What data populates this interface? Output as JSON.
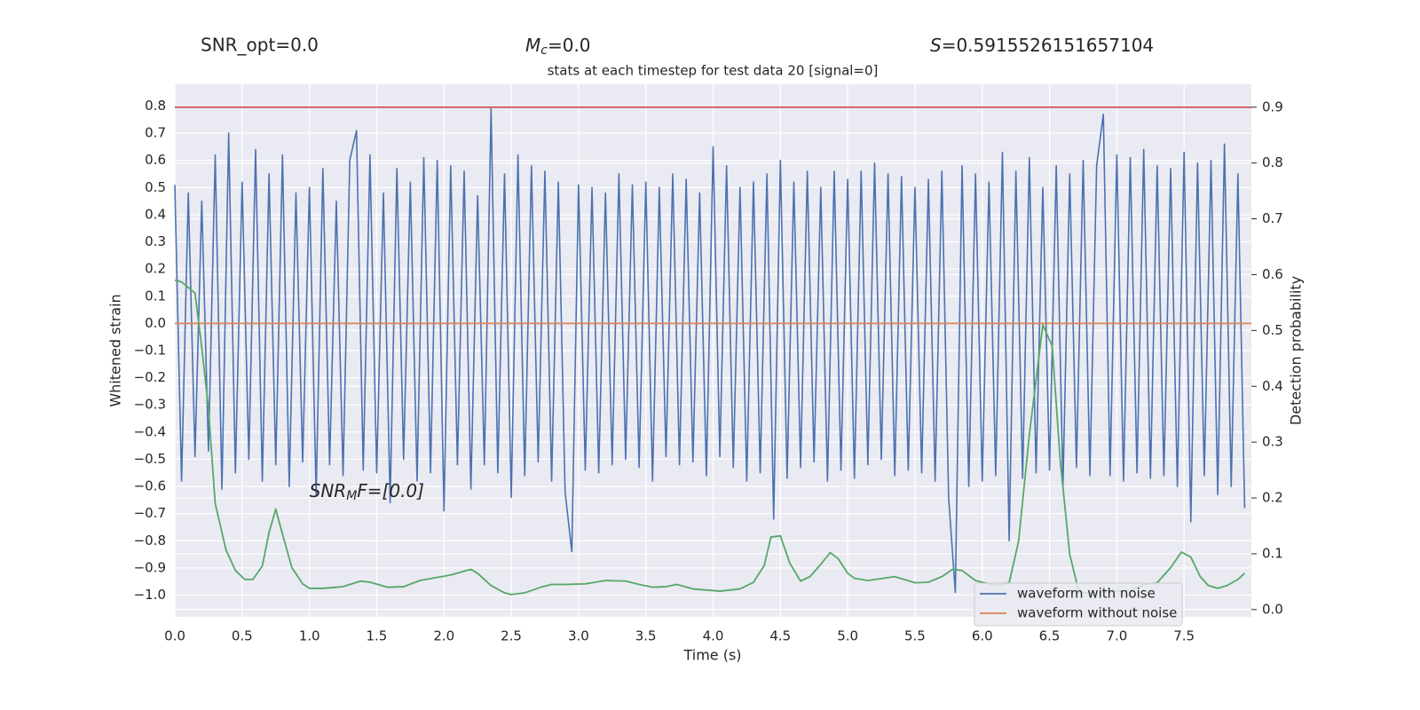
{
  "chart_data": {
    "type": "line",
    "title": "stats at each timestep for test data 20 [signal=0]",
    "annotations": [
      {
        "text": "SNR_opt=0.0"
      },
      {
        "symbol": "M",
        "sub": "c",
        "rest": "=0.0"
      },
      {
        "symbol": "S",
        "rest": "=0.5915526151657104"
      },
      {
        "symbol": "SNR",
        "sub": "M",
        "rest": "F=[0.0]",
        "x": 1.0,
        "y": -0.62
      }
    ],
    "x_label": "Time (s)",
    "y_label": "Whitened strain",
    "y2_label": "Detection probability",
    "xlim": [
      0,
      8
    ],
    "ylim": [
      -1.08,
      0.88
    ],
    "y2lim": [
      -0.013,
      0.941
    ],
    "xticks": [
      {
        "value": 0,
        "label": "0.0"
      },
      {
        "value": 0.5,
        "label": "0.5"
      },
      {
        "value": 1,
        "label": "1.0"
      },
      {
        "value": 1.5,
        "label": "1.5"
      },
      {
        "value": 2,
        "label": "2.0"
      },
      {
        "value": 2.5,
        "label": "2.5"
      },
      {
        "value": 3,
        "label": "3.0"
      },
      {
        "value": 3.5,
        "label": "3.5"
      },
      {
        "value": 4,
        "label": "4.0"
      },
      {
        "value": 4.5,
        "label": "4.5"
      },
      {
        "value": 5,
        "label": "5.0"
      },
      {
        "value": 5.5,
        "label": "5.5"
      },
      {
        "value": 6,
        "label": "6.0"
      },
      {
        "value": 6.5,
        "label": "6.5"
      },
      {
        "value": 7,
        "label": "7.0"
      },
      {
        "value": 7.5,
        "label": "7.5"
      }
    ],
    "yticks": [
      {
        "value": -1.0,
        "label": "−1.0"
      },
      {
        "value": -0.9,
        "label": "−0.9"
      },
      {
        "value": -0.8,
        "label": "−0.8"
      },
      {
        "value": -0.7,
        "label": "−0.7"
      },
      {
        "value": -0.6,
        "label": "−0.6"
      },
      {
        "value": -0.5,
        "label": "−0.5"
      },
      {
        "value": -0.4,
        "label": "−0.4"
      },
      {
        "value": -0.3,
        "label": "−0.3"
      },
      {
        "value": -0.2,
        "label": "−0.2"
      },
      {
        "value": -0.1,
        "label": "−0.1"
      },
      {
        "value": 0,
        "label": "0.0"
      },
      {
        "value": 0.1,
        "label": "0.1"
      },
      {
        "value": 0.2,
        "label": "0.2"
      },
      {
        "value": 0.3,
        "label": "0.3"
      },
      {
        "value": 0.4,
        "label": "0.4"
      },
      {
        "value": 0.5,
        "label": "0.5"
      },
      {
        "value": 0.6,
        "label": "0.6"
      },
      {
        "value": 0.7,
        "label": "0.7"
      },
      {
        "value": 0.8,
        "label": "0.8"
      }
    ],
    "y2ticks": [
      {
        "value": 0,
        "label": "0.0"
      },
      {
        "value": 0.1,
        "label": "0.1"
      },
      {
        "value": 0.2,
        "label": "0.2"
      },
      {
        "value": 0.3,
        "label": "0.3"
      },
      {
        "value": 0.4,
        "label": "0.4"
      },
      {
        "value": 0.5,
        "label": "0.5"
      },
      {
        "value": 0.6,
        "label": "0.6"
      },
      {
        "value": 0.7,
        "label": "0.7"
      },
      {
        "value": 0.8,
        "label": "0.8"
      },
      {
        "value": 0.9,
        "label": "0.9"
      }
    ],
    "grid": true,
    "legend": "lower right",
    "threshold": {
      "value": 0.9,
      "axis": "y2",
      "color": "#c44e52"
    },
    "series": [
      {
        "name": "waveform with noise",
        "color": "#4c72b0",
        "x": [
          0,
          0.05,
          0.1,
          0.15,
          0.2,
          0.25,
          0.3,
          0.35,
          0.4,
          0.45,
          0.5,
          0.55,
          0.6,
          0.65,
          0.7,
          0.75,
          0.8,
          0.85,
          0.9,
          0.95,
          1,
          1.05,
          1.1,
          1.15,
          1.2,
          1.25,
          1.3,
          1.35,
          1.4,
          1.45,
          1.5,
          1.55,
          1.6,
          1.65,
          1.7,
          1.75,
          1.8,
          1.85,
          1.9,
          1.95,
          2,
          2.05,
          2.1,
          2.15,
          2.2,
          2.25,
          2.3,
          2.35,
          2.4,
          2.45,
          2.5,
          2.55,
          2.6,
          2.65,
          2.7,
          2.75,
          2.8,
          2.85,
          2.9,
          2.95,
          3,
          3.05,
          3.1,
          3.15,
          3.2,
          3.25,
          3.3,
          3.35,
          3.4,
          3.45,
          3.5,
          3.55,
          3.6,
          3.65,
          3.7,
          3.75,
          3.8,
          3.85,
          3.9,
          3.95,
          4,
          4.05,
          4.1,
          4.15,
          4.2,
          4.25,
          4.3,
          4.35,
          4.4,
          4.45,
          4.5,
          4.55,
          4.6,
          4.65,
          4.7,
          4.75,
          4.8,
          4.85,
          4.9,
          4.95,
          5,
          5.05,
          5.1,
          5.15,
          5.2,
          5.25,
          5.3,
          5.35,
          5.4,
          5.45,
          5.5,
          5.55,
          5.6,
          5.65,
          5.7,
          5.75,
          5.8,
          5.85,
          5.9,
          5.95,
          6,
          6.05,
          6.1,
          6.15,
          6.2,
          6.25,
          6.3,
          6.35,
          6.4,
          6.45,
          6.5,
          6.55,
          6.6,
          6.65,
          6.7,
          6.75,
          6.8,
          6.85,
          6.9,
          6.95,
          7,
          7.05,
          7.1,
          7.15,
          7.2,
          7.25,
          7.3,
          7.35,
          7.4,
          7.45,
          7.5,
          7.55,
          7.6,
          7.65,
          7.7,
          7.75,
          7.8,
          7.85,
          7.9,
          7.95
        ],
        "values": [
          0.51,
          -0.58,
          0.48,
          -0.49,
          0.45,
          -0.47,
          0.62,
          -0.61,
          0.7,
          -0.55,
          0.52,
          -0.5,
          0.64,
          -0.58,
          0.55,
          -0.52,
          0.62,
          -0.6,
          0.48,
          -0.51,
          0.5,
          -0.63,
          0.57,
          -0.52,
          0.45,
          -0.56,
          0.6,
          0.71,
          -0.54,
          0.62,
          -0.55,
          0.48,
          -0.66,
          0.57,
          -0.5,
          0.52,
          -0.58,
          0.61,
          -0.55,
          0.6,
          -0.69,
          0.58,
          -0.52,
          0.56,
          -0.61,
          0.47,
          -0.52,
          0.79,
          -0.55,
          0.55,
          -0.64,
          0.62,
          -0.56,
          0.58,
          -0.51,
          0.56,
          -0.58,
          0.52,
          -0.62,
          -0.84,
          0.51,
          -0.54,
          0.5,
          -0.55,
          0.48,
          -0.52,
          0.55,
          -0.5,
          0.51,
          -0.53,
          0.52,
          -0.58,
          0.5,
          -0.49,
          0.55,
          -0.52,
          0.53,
          -0.51,
          0.48,
          -0.56,
          0.65,
          -0.49,
          0.58,
          -0.53,
          0.5,
          -0.58,
          0.52,
          -0.55,
          0.55,
          -0.72,
          0.6,
          -0.57,
          0.52,
          -0.53,
          0.56,
          -0.51,
          0.5,
          -0.58,
          0.56,
          -0.54,
          0.53,
          -0.57,
          0.56,
          -0.52,
          0.59,
          -0.5,
          0.55,
          -0.56,
          0.54,
          -0.54,
          0.5,
          -0.55,
          0.53,
          -0.58,
          0.56,
          -0.64,
          -0.99,
          0.58,
          -0.6,
          0.55,
          -0.58,
          0.52,
          -0.56,
          0.63,
          -0.8,
          0.56,
          -0.57,
          0.61,
          -0.55,
          0.5,
          -0.54,
          0.58,
          -0.6,
          0.55,
          -0.53,
          0.6,
          -0.56,
          0.58,
          0.77,
          -0.56,
          0.62,
          -0.58,
          0.61,
          -0.55,
          0.64,
          -0.57,
          0.58,
          -0.56,
          0.57,
          -0.6,
          0.63,
          -0.73,
          0.59,
          -0.56,
          0.6,
          -0.63,
          0.66,
          -0.6,
          0.55,
          -0.68
        ]
      },
      {
        "name": "waveform without noise",
        "color": "#dd8452",
        "x": [
          0,
          8
        ],
        "values": [
          0,
          0
        ]
      },
      {
        "color": "#55a868",
        "axis": "y2",
        "x": [
          0,
          0.05,
          0.15,
          0.2,
          0.25,
          0.3,
          0.38,
          0.45,
          0.52,
          0.58,
          0.65,
          0.7,
          0.75,
          0.8,
          0.87,
          0.95,
          1,
          1.1,
          1.25,
          1.38,
          1.45,
          1.58,
          1.7,
          1.82,
          2.05,
          2.2,
          2.25,
          2.35,
          2.45,
          2.5,
          2.6,
          2.72,
          2.8,
          2.9,
          3.05,
          3.2,
          3.35,
          3.45,
          3.55,
          3.65,
          3.73,
          3.85,
          4.05,
          4.2,
          4.3,
          4.38,
          4.43,
          4.5,
          4.57,
          4.65,
          4.72,
          4.8,
          4.87,
          4.93,
          5,
          5.05,
          5.15,
          5.35,
          5.5,
          5.6,
          5.7,
          5.78,
          5.85,
          5.95,
          6.1,
          6.2,
          6.27,
          6.35,
          6.45,
          6.52,
          6.58,
          6.65,
          6.72,
          6.85,
          7.1,
          7.2,
          7.3,
          7.4,
          7.48,
          7.55,
          7.62,
          7.68,
          7.75,
          7.82,
          7.9,
          7.95
        ],
        "values": [
          0.59,
          0.587,
          0.567,
          0.47,
          0.36,
          0.19,
          0.107,
          0.07,
          0.054,
          0.054,
          0.078,
          0.138,
          0.18,
          0.135,
          0.075,
          0.046,
          0.038,
          0.038,
          0.041,
          0.051,
          0.049,
          0.04,
          0.041,
          0.052,
          0.062,
          0.072,
          0.065,
          0.043,
          0.03,
          0.027,
          0.03,
          0.04,
          0.045,
          0.045,
          0.046,
          0.052,
          0.051,
          0.045,
          0.04,
          0.041,
          0.045,
          0.037,
          0.033,
          0.037,
          0.049,
          0.079,
          0.13,
          0.132,
          0.083,
          0.051,
          0.059,
          0.081,
          0.102,
          0.091,
          0.065,
          0.056,
          0.052,
          0.059,
          0.048,
          0.049,
          0.059,
          0.072,
          0.07,
          0.052,
          0.043,
          0.048,
          0.122,
          0.313,
          0.51,
          0.472,
          0.266,
          0.099,
          0.03,
          0.03,
          0.035,
          0.045,
          0.048,
          0.075,
          0.103,
          0.094,
          0.059,
          0.043,
          0.038,
          0.043,
          0.054,
          0.065
        ]
      }
    ]
  }
}
